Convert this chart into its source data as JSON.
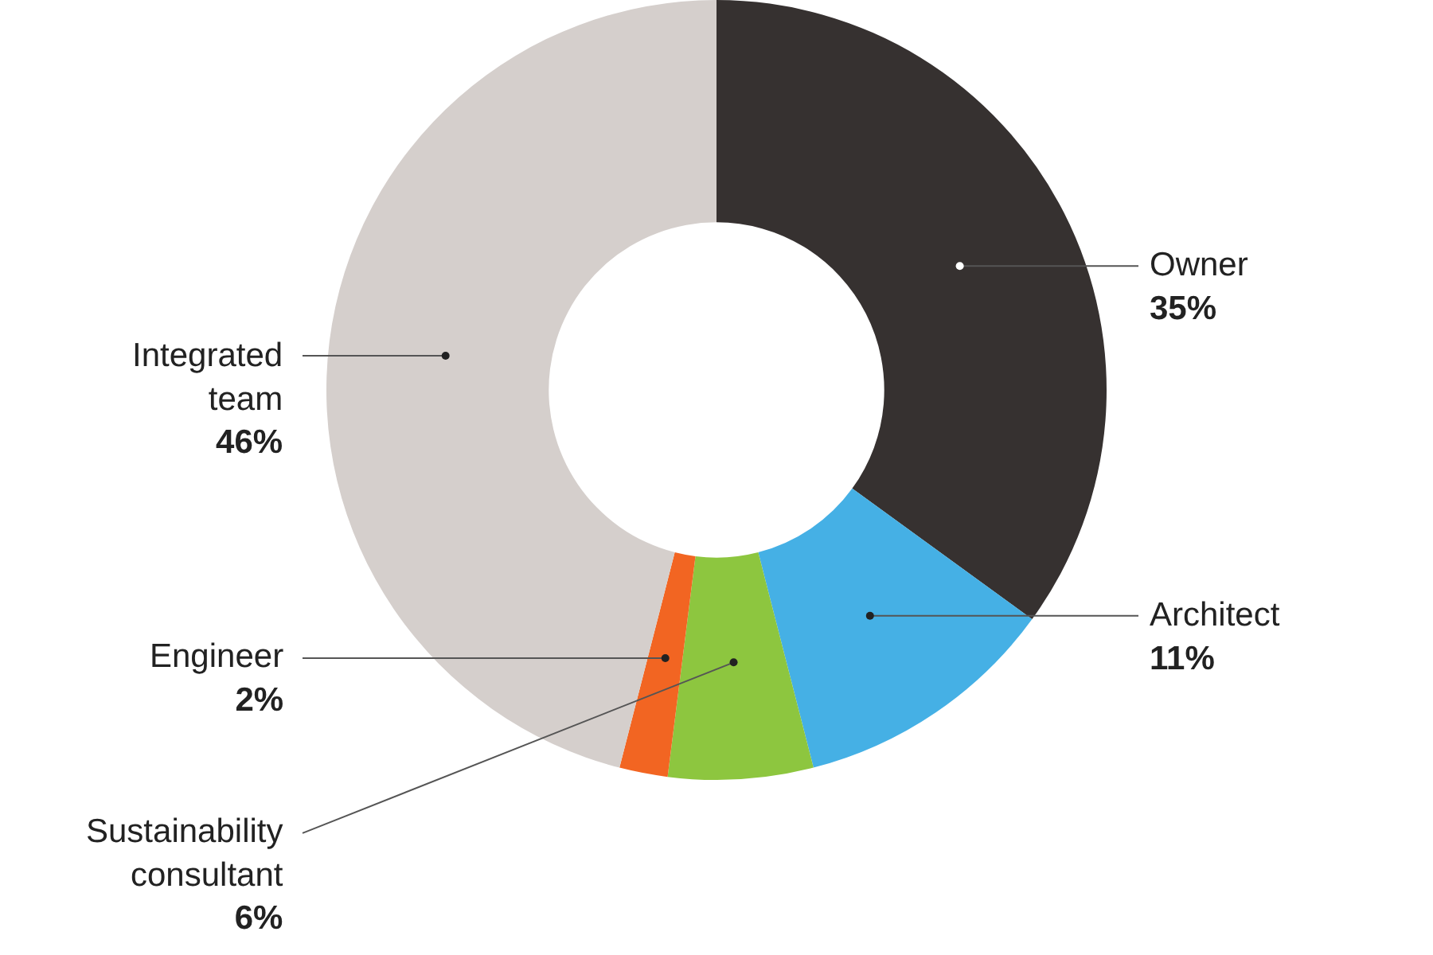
{
  "chart_data": {
    "type": "donut",
    "categories": [
      "Owner",
      "Architect",
      "Sustainability consultant",
      "Engineer",
      "Integrated team"
    ],
    "values": [
      35,
      11,
      6,
      2,
      46
    ],
    "value_labels": [
      "35%",
      "11%",
      "6%",
      "2%",
      "46%"
    ],
    "colors": [
      "#363130",
      "#45b0e5",
      "#8dc63f",
      "#f26522",
      "#d5cfcc"
    ],
    "legend": false
  }
}
